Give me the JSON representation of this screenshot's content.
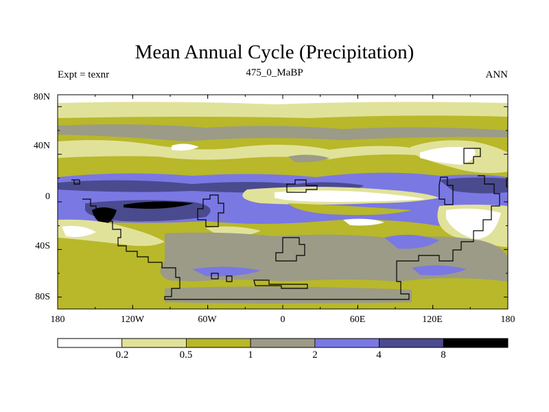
{
  "title": "Mean Annual Cycle (Precipitation)",
  "left_label": "Expt = texnr",
  "center_label": "475_0_MaBP",
  "right_label": "ANN",
  "lat_ticks": [
    "80N",
    "40N",
    "0",
    "40S",
    "80S"
  ],
  "lon_ticks": [
    "180",
    "120W",
    "60W",
    "0",
    "60E",
    "120E",
    "180"
  ],
  "colorbar": {
    "labels": [
      "0.2",
      "0.5",
      "1",
      "2",
      "4",
      "8"
    ],
    "colors": [
      "#ffffff",
      "#e1e29a",
      "#b8b82a",
      "#9b9b87",
      "#7a78e3",
      "#4a4a8e",
      "#000000"
    ]
  }
}
